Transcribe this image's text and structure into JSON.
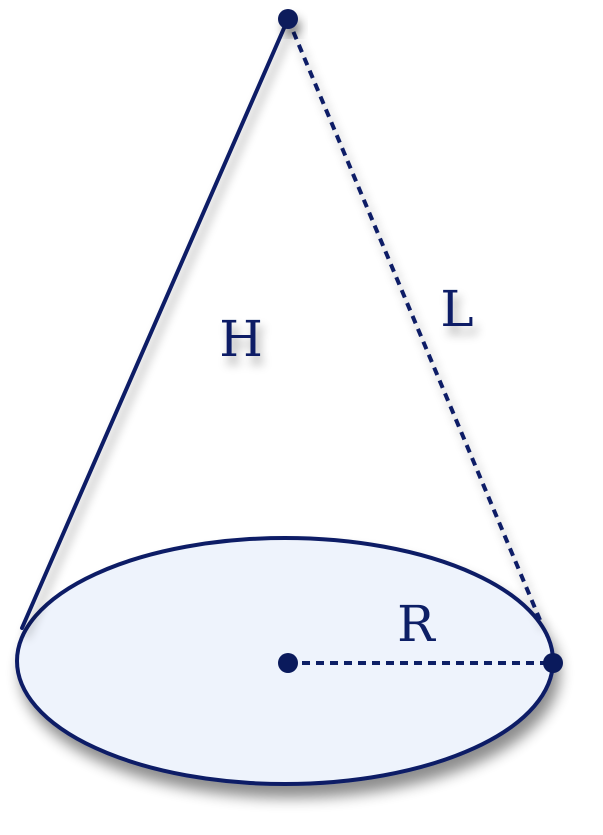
{
  "diagram": {
    "labels": {
      "height": "H",
      "slant": "L",
      "radius": "R"
    },
    "colors": {
      "stroke": "#0d1f66",
      "base_fill": "#eef3fc",
      "point": "#0a1a5c",
      "shadow": "#6b7280"
    }
  }
}
